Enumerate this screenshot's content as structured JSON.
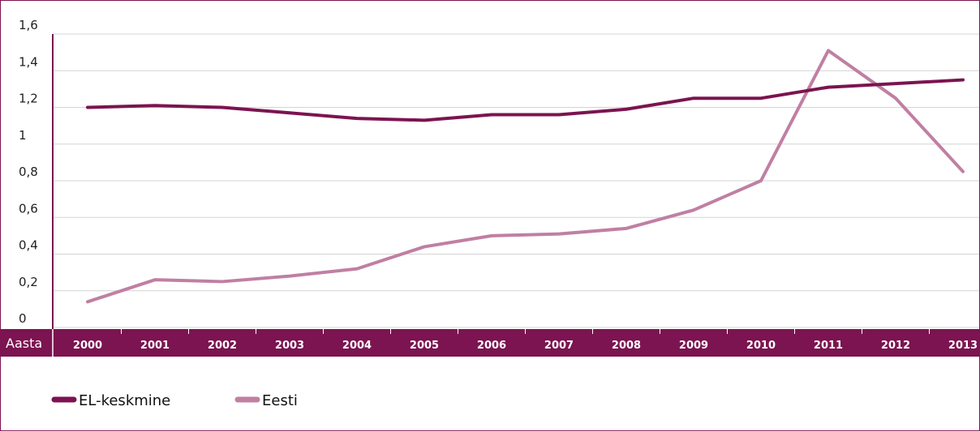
{
  "chart_data": {
    "type": "line",
    "x_axis_label": "Aasta",
    "categories": [
      "2000",
      "2001",
      "2002",
      "2003",
      "2004",
      "2005",
      "2006",
      "2007",
      "2008",
      "2009",
      "2010",
      "2011",
      "2012",
      "2013"
    ],
    "y_ticks": [
      "0",
      "0,2",
      "0,4",
      "0,6",
      "0,8",
      "1",
      "1,2",
      "1,4",
      "1,6"
    ],
    "ylim": [
      0,
      1.6
    ],
    "grid": true,
    "legend_position": "bottom-left",
    "series": [
      {
        "name": "EL-keskmine",
        "color": "#7b1450",
        "values": [
          1.2,
          1.21,
          1.2,
          1.17,
          1.14,
          1.13,
          1.16,
          1.16,
          1.19,
          1.25,
          1.25,
          1.31,
          1.33,
          1.35
        ]
      },
      {
        "name": "Eesti",
        "color": "#c07fa3",
        "values": [
          0.14,
          0.26,
          0.25,
          0.28,
          0.32,
          0.44,
          0.5,
          0.51,
          0.54,
          0.64,
          0.8,
          1.51,
          1.25,
          0.85
        ]
      }
    ]
  }
}
